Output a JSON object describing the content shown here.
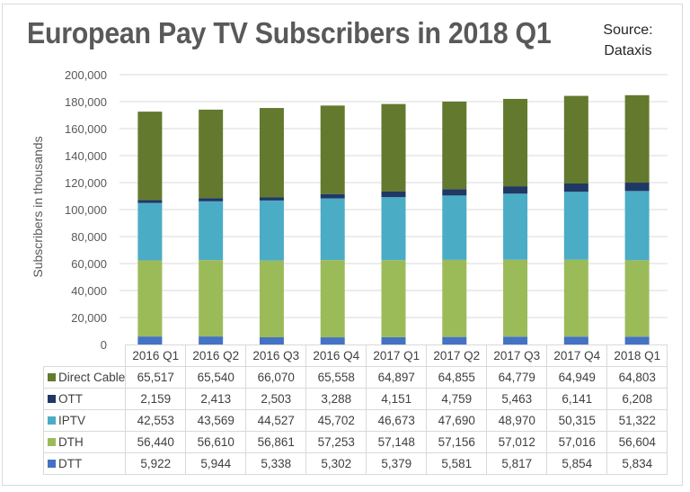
{
  "title": "European Pay TV Subscribers in 2018 Q1",
  "source_line1": "Source:",
  "source_line2": "Dataxis",
  "chart_data": {
    "type": "bar",
    "stacked": true,
    "title": "European Pay TV Subscribers in 2018 Q1",
    "xlabel": "",
    "ylabel": "Subscribers in thousands",
    "ylim": [
      0,
      200000
    ],
    "yticks": [
      0,
      20000,
      40000,
      60000,
      80000,
      100000,
      120000,
      140000,
      160000,
      180000,
      200000
    ],
    "ytick_labels": [
      "0",
      "20,000",
      "40,000",
      "60,000",
      "80,000",
      "100,000",
      "120,000",
      "140,000",
      "160,000",
      "180,000",
      "200,000"
    ],
    "grid": true,
    "legend": "data-table-below",
    "categories": [
      "2016 Q1",
      "2016 Q2",
      "2016 Q3",
      "2016 Q4",
      "2017 Q1",
      "2017 Q2",
      "2017 Q3",
      "2017 Q4",
      "2018 Q1"
    ],
    "series": [
      {
        "name": "DTT",
        "color": "#4472c4",
        "values": [
          5922,
          5944,
          5338,
          5302,
          5379,
          5581,
          5817,
          5854,
          5834
        ],
        "labels": [
          "5,922",
          "5,944",
          "5,338",
          "5,302",
          "5,379",
          "5,581",
          "5,817",
          "5,854",
          "5,834"
        ]
      },
      {
        "name": "DTH",
        "color": "#9bbb59",
        "values": [
          56440,
          56610,
          56861,
          57253,
          57148,
          57156,
          57012,
          57016,
          56604
        ],
        "labels": [
          "56,440",
          "56,610",
          "56,861",
          "57,253",
          "57,148",
          "57,156",
          "57,012",
          "57,016",
          "56,604"
        ]
      },
      {
        "name": "IPTV",
        "color": "#4bacc6",
        "values": [
          42553,
          43569,
          44527,
          45702,
          46673,
          47690,
          48970,
          50315,
          51322
        ],
        "labels": [
          "42,553",
          "43,569",
          "44,527",
          "45,702",
          "46,673",
          "47,690",
          "48,970",
          "50,315",
          "51,322"
        ]
      },
      {
        "name": "OTT",
        "color": "#1f3864",
        "values": [
          2159,
          2413,
          2503,
          3288,
          4151,
          4759,
          5463,
          6141,
          6208
        ],
        "labels": [
          "2,159",
          "2,413",
          "2,503",
          "3,288",
          "4,151",
          "4,759",
          "5,463",
          "6,141",
          "6,208"
        ]
      },
      {
        "name": "Direct Cable",
        "color": "#637a2e",
        "values": [
          65517,
          65540,
          66070,
          65558,
          64897,
          64855,
          64779,
          64949,
          64803
        ],
        "labels": [
          "65,517",
          "65,540",
          "66,070",
          "65,558",
          "64,897",
          "64,855",
          "64,779",
          "64,949",
          "64,803"
        ]
      }
    ],
    "table_row_order": [
      "Direct Cable",
      "OTT",
      "IPTV",
      "DTH",
      "DTT"
    ]
  }
}
